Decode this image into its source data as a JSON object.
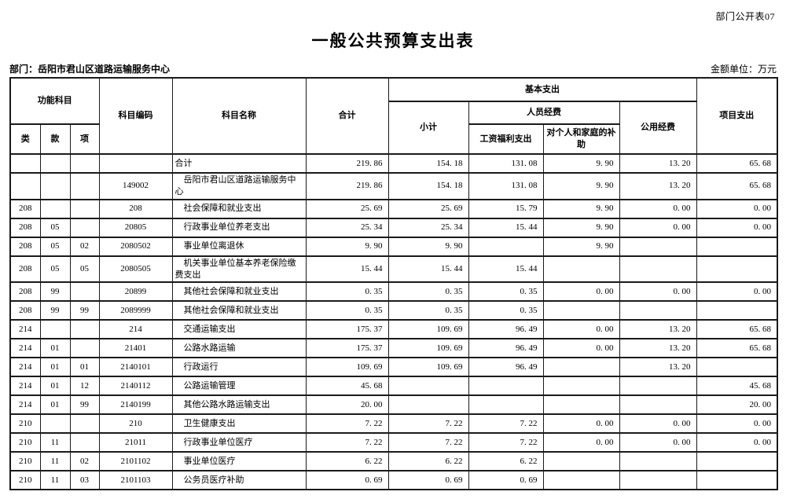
{
  "doc_label": "部门公开表07",
  "title": "一般公共预算支出表",
  "department_label": "部门：岳阳市君山区道路运输服务中心",
  "unit_label": "金额单位：万元",
  "table": {
    "headers": {
      "func_subject": "功能科目",
      "class": "类",
      "section": "款",
      "item": "项",
      "subject_code": "科目编码",
      "subject_name": "科目名称",
      "total": "合计",
      "basic_expenditure": "基本支出",
      "subtotal": "小计",
      "personnel_funds": "人员经费",
      "wage_welfare": "工资福利支出",
      "individual_family_subsidy": "对个人和家庭的补助",
      "public_funds": "公用经费",
      "project_expenditure": "项目支出"
    },
    "rows": [
      [
        "",
        "",
        "",
        "",
        "合计",
        "219. 86",
        "154. 18",
        "131. 08",
        "9. 90",
        "13. 20",
        "65. 68"
      ],
      [
        "",
        "",
        "",
        "149002",
        "　岳阳市君山区道路运输服务中心",
        "219. 86",
        "154. 18",
        "131. 08",
        "9. 90",
        "13. 20",
        "65. 68"
      ],
      [
        "208",
        "",
        "",
        "208",
        "　社会保障和就业支出",
        "25. 69",
        "25. 69",
        "15. 79",
        "9. 90",
        "0. 00",
        "0. 00"
      ],
      [
        "208",
        "05",
        "",
        "20805",
        "　行政事业单位养老支出",
        "25. 34",
        "25. 34",
        "15. 44",
        "9. 90",
        "0. 00",
        "0. 00"
      ],
      [
        "208",
        "05",
        "02",
        "2080502",
        "　事业单位离退休",
        "9. 90",
        "9. 90",
        "",
        "9. 90",
        "",
        ""
      ],
      [
        "208",
        "05",
        "05",
        "2080505",
        "　机关事业单位基本养老保险缴费支出",
        "15. 44",
        "15. 44",
        "15. 44",
        "",
        "",
        ""
      ],
      [
        "208",
        "99",
        "",
        "20899",
        "　其他社会保障和就业支出",
        "0. 35",
        "0. 35",
        "0. 35",
        "0. 00",
        "0. 00",
        "0. 00"
      ],
      [
        "208",
        "99",
        "99",
        "2089999",
        "　其他社会保障和就业支出",
        "0. 35",
        "0. 35",
        "0. 35",
        "",
        "",
        ""
      ],
      [
        "214",
        "",
        "",
        "214",
        "　交通运输支出",
        "175. 37",
        "109. 69",
        "96. 49",
        "0. 00",
        "13. 20",
        "65. 68"
      ],
      [
        "214",
        "01",
        "",
        "21401",
        "　公路水路运输",
        "175. 37",
        "109. 69",
        "96. 49",
        "0. 00",
        "13. 20",
        "65. 68"
      ],
      [
        "214",
        "01",
        "01",
        "2140101",
        "　行政运行",
        "109. 69",
        "109. 69",
        "96. 49",
        "",
        "13. 20",
        ""
      ],
      [
        "214",
        "01",
        "12",
        "2140112",
        "　公路运输管理",
        "45. 68",
        "",
        "",
        "",
        "",
        "45. 68"
      ],
      [
        "214",
        "01",
        "99",
        "2140199",
        "　其他公路水路运输支出",
        "20. 00",
        "",
        "",
        "",
        "",
        "20. 00"
      ],
      [
        "210",
        "",
        "",
        "210",
        "　卫生健康支出",
        "7. 22",
        "7. 22",
        "7. 22",
        "0. 00",
        "0. 00",
        "0. 00"
      ],
      [
        "210",
        "11",
        "",
        "21011",
        "　行政事业单位医疗",
        "7. 22",
        "7. 22",
        "7. 22",
        "0. 00",
        "0. 00",
        "0. 00"
      ],
      [
        "210",
        "11",
        "02",
        "2101102",
        "　事业单位医疗",
        "6. 22",
        "6. 22",
        "6. 22",
        "",
        "",
        ""
      ],
      [
        "210",
        "11",
        "03",
        "2101103",
        "　公务员医疗补助",
        "0. 69",
        "0. 69",
        "0. 69",
        "",
        "",
        ""
      ]
    ]
  }
}
